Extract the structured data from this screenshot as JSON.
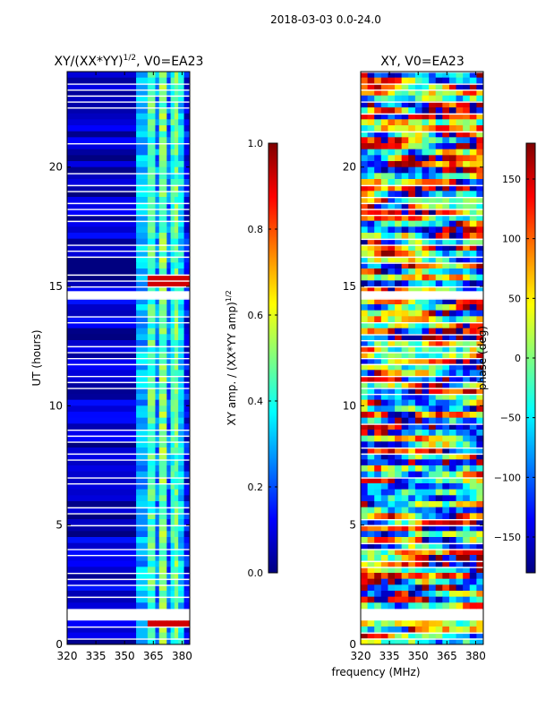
{
  "suptitle": "2018-03-03 0.0-24.0",
  "chart_data": [
    {
      "type": "heatmap",
      "title_main": "XY/(XX*YY)",
      "title_exp": "1/2",
      "title_suffix": ", V0=EA23",
      "xlabel": "",
      "ylabel": "UT (hours)",
      "xlim": [
        320,
        384
      ],
      "ylim": [
        0,
        24
      ],
      "xticks": [
        320,
        335,
        350,
        365,
        380
      ],
      "yticks": [
        0,
        5,
        10,
        15,
        20
      ],
      "colormap": "jet",
      "colorbar": {
        "label_main": "XY amp. / (XX*YY amp)",
        "label_exp": "1/2",
        "range": [
          0.0,
          1.0
        ],
        "ticks": [
          "0.0",
          "0.2",
          "0.4",
          "0.6",
          "0.8",
          "1.0"
        ]
      },
      "gap_bands_ut": [
        [
          1.1,
          1.45
        ],
        [
          14.5,
          14.8
        ]
      ],
      "bright_patches_ut": [
        0.95,
        15.3
      ]
    },
    {
      "type": "heatmap",
      "title": "XY, V0=EA23",
      "xlabel": "frequency (MHz)",
      "ylabel": "",
      "xlim": [
        320,
        384
      ],
      "ylim": [
        0,
        24
      ],
      "xticks": [
        320,
        335,
        350,
        365,
        380
      ],
      "yticks": [
        0,
        5,
        10,
        15,
        20
      ],
      "colormap": "jet",
      "colorbar": {
        "label": "phase (deg)",
        "range": [
          -180,
          180
        ],
        "ticks": [
          "150",
          "100",
          "50",
          "0",
          "−50",
          "−100",
          "−150"
        ],
        "tick_values": [
          150,
          100,
          50,
          0,
          -50,
          -100,
          -150
        ]
      },
      "gap_bands_ut": [
        [
          1.1,
          1.45
        ],
        [
          14.5,
          14.8
        ]
      ]
    }
  ]
}
